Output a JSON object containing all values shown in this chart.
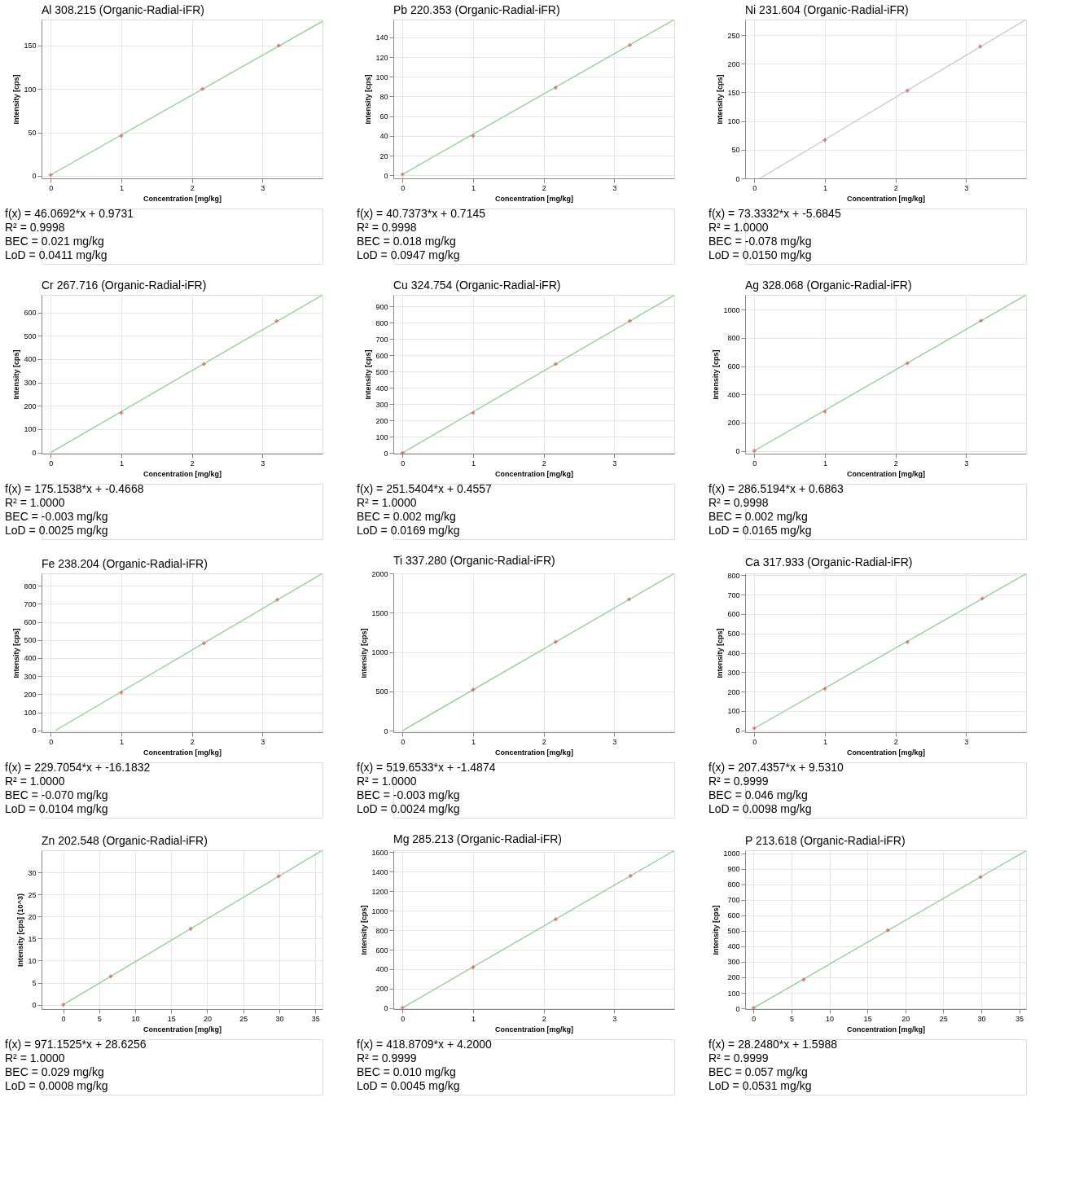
{
  "chart_data": [
    {
      "type": "scatter",
      "title": "Al 308.215 (Organic-Radial-iFR)",
      "xlabel": "Concentration [mg/kg]",
      "ylabel": "Intensity [cps]",
      "xlim": [
        -0.13,
        3.85
      ],
      "xticks": [
        0,
        1,
        2,
        3
      ],
      "ylim": [
        -3,
        180
      ],
      "yticks": [
        0,
        50,
        100,
        150
      ],
      "grid": true,
      "series": [
        {
          "type": "line",
          "color": "#8fd08f",
          "x": [
            0,
            3.85
          ],
          "values": [
            1,
            178
          ]
        },
        {
          "color": "#e05050",
          "marker": "cross",
          "x": [
            0,
            1,
            2.15,
            3.23
          ],
          "values": [
            1,
            46,
            100,
            150
          ]
        }
      ],
      "annotations": [
        "f(x) = 46.0692*x + 0.9731",
        "R² = 0.9998",
        "BEC = 0.021 mg/kg",
        "LoD = 0.0411 mg/kg"
      ]
    },
    {
      "type": "scatter",
      "title": "Pb 220.353 (Organic-Radial-iFR)",
      "xlabel": "Concentration [mg/kg]",
      "ylabel": "Intensity [cps]",
      "xlim": [
        -0.13,
        3.85
      ],
      "xticks": [
        0,
        1,
        2,
        3
      ],
      "ylim": [
        -3,
        158
      ],
      "yticks": [
        0,
        20,
        40,
        60,
        80,
        100,
        120,
        140
      ],
      "grid": true,
      "series": [
        {
          "type": "line",
          "color": "#8fd08f",
          "x": [
            0,
            3.85
          ],
          "values": [
            1,
            158
          ]
        },
        {
          "color": "#e05050",
          "marker": "cross",
          "x": [
            0,
            1,
            2.17,
            3.22
          ],
          "values": [
            1,
            40,
            89,
            132
          ]
        }
      ],
      "annotations": [
        "f(x) = 40.7373*x + 0.7145",
        "R² = 0.9998",
        "BEC = 0.018 mg/kg",
        "LoD = 0.0947 mg/kg"
      ]
    },
    {
      "type": "scatter",
      "title": "Ni 231.604 (Organic-Radial-iFR)",
      "xlabel": "Concentration [mg/kg]",
      "ylabel": "Intensity [cps]",
      "xlim": [
        -0.13,
        3.85
      ],
      "xticks": [
        0,
        1,
        2,
        3
      ],
      "ylim": [
        0,
        277
      ],
      "yticks": [
        0,
        50,
        100,
        150,
        200,
        250
      ],
      "grid": true,
      "series": [
        {
          "type": "line",
          "color": "#c8c8c8",
          "x": [
            0.08,
            3.85
          ],
          "values": [
            0,
            277
          ]
        },
        {
          "color": "#e05050",
          "marker": "cross",
          "x": [
            1,
            2.17,
            3.2
          ],
          "values": [
            67,
            153,
            230
          ]
        }
      ],
      "annotations": [
        "f(x) = 73.3332*x + -5.6845",
        "R² = 1.0000",
        "BEC = -0.078 mg/kg",
        "LoD = 0.0150 mg/kg"
      ]
    },
    {
      "type": "scatter",
      "title": "Cr 267.716 (Organic-Radial-iFR)",
      "xlabel": "Concentration [mg/kg]",
      "ylabel": "Intensity [cps]",
      "xlim": [
        -0.13,
        3.85
      ],
      "xticks": [
        0,
        1,
        2,
        3
      ],
      "ylim": [
        -5,
        675
      ],
      "yticks": [
        0,
        100,
        200,
        300,
        400,
        500,
        600
      ],
      "grid": true,
      "series": [
        {
          "type": "line",
          "color": "#8fd08f",
          "x": [
            0,
            3.85
          ],
          "values": [
            0,
            674
          ]
        },
        {
          "color": "#e05050",
          "marker": "cross",
          "x": [
            1,
            2.17,
            3.2
          ],
          "values": [
            170,
            378,
            563
          ]
        }
      ],
      "annotations": [
        "f(x) = 175.1538*x + -0.4668",
        "R² = 1.0000",
        "BEC = -0.003 mg/kg",
        "LoD = 0.0025 mg/kg"
      ]
    },
    {
      "type": "scatter",
      "title": "Cu 324.754 (Organic-Radial-iFR)",
      "xlabel": "Concentration [mg/kg]",
      "ylabel": "Intensity [cps]",
      "xlim": [
        -0.13,
        3.85
      ],
      "xticks": [
        0,
        1,
        2,
        3
      ],
      "ylim": [
        -5,
        970
      ],
      "yticks": [
        0,
        100,
        200,
        300,
        400,
        500,
        600,
        700,
        800,
        900
      ],
      "grid": true,
      "series": [
        {
          "type": "line",
          "color": "#8fd08f",
          "x": [
            0,
            3.85
          ],
          "values": [
            0,
            968
          ]
        },
        {
          "color": "#e05050",
          "marker": "cross",
          "x": [
            0,
            1,
            2.17,
            3.22
          ],
          "values": [
            0,
            245,
            545,
            810
          ]
        }
      ],
      "annotations": [
        "f(x) = 251.5404*x + 0.4557",
        "R² = 1.0000",
        "BEC = 0.002 mg/kg",
        "LoD = 0.0169 mg/kg"
      ]
    },
    {
      "type": "scatter",
      "title": "Ag 328.068 (Organic-Radial-iFR)",
      "xlabel": "Concentration [mg/kg]",
      "ylabel": "Intensity [cps]",
      "xlim": [
        -0.13,
        3.85
      ],
      "xticks": [
        0,
        1,
        2,
        3
      ],
      "ylim": [
        -20,
        1105
      ],
      "yticks": [
        0,
        200,
        400,
        600,
        800,
        1000
      ],
      "grid": true,
      "series": [
        {
          "type": "line",
          "color": "#8fd08f",
          "x": [
            0,
            3.85
          ],
          "values": [
            0,
            1104
          ]
        },
        {
          "color": "#e05050",
          "marker": "cross",
          "x": [
            0,
            1,
            2.17,
            3.21
          ],
          "values": [
            0,
            278,
            620,
            922
          ]
        }
      ],
      "annotations": [
        "f(x) = 286.5194*x + 0.6863",
        "R² = 0.9998",
        "BEC = 0.002 mg/kg",
        "LoD = 0.0165 mg/kg"
      ]
    },
    {
      "type": "scatter",
      "title": "Fe 238.204 (Organic-Radial-iFR)",
      "xlabel": "Concentration [mg/kg]",
      "ylabel": "Intensity [cps]",
      "xlim": [
        -0.13,
        3.85
      ],
      "xticks": [
        0,
        1,
        2,
        3
      ],
      "ylim": [
        -10,
        868
      ],
      "yticks": [
        0,
        100,
        200,
        300,
        400,
        500,
        600,
        700,
        800
      ],
      "grid": true,
      "series": [
        {
          "type": "line",
          "color": "#8fd08f",
          "x": [
            0.07,
            3.85
          ],
          "values": [
            0,
            868
          ]
        },
        {
          "color": "#e05050",
          "marker": "cross",
          "x": [
            1,
            2.17,
            3.21
          ],
          "values": [
            209,
            481,
            722
          ]
        }
      ],
      "annotations": [
        "f(x) = 229.7054*x + -16.1832",
        "R² = 1.0000",
        "BEC = -0.070 mg/kg",
        "LoD = 0.0104 mg/kg"
      ]
    },
    {
      "type": "scatter",
      "title": "Ti 337.280 (Organic-Radial-iFR)",
      "xlabel": "Concentration [mg/kg]",
      "ylabel": "Intensity [cps]",
      "xlim": [
        -0.13,
        3.85
      ],
      "xticks": [
        0,
        1,
        2,
        3
      ],
      "ylim": [
        -20,
        2000
      ],
      "yticks": [
        0,
        500,
        1000,
        1500,
        2000
      ],
      "grid": true,
      "series": [
        {
          "type": "line",
          "color": "#8fd08f",
          "x": [
            0,
            3.85
          ],
          "values": [
            0,
            2000
          ]
        },
        {
          "color": "#e05050",
          "marker": "cross",
          "x": [
            1,
            2.17,
            3.21
          ],
          "values": [
            520,
            1130,
            1670
          ]
        }
      ],
      "annotations": [
        "f(x) = 519.6533*x + -1.4874",
        "R² = 1.0000",
        "BEC = -0.003 mg/kg",
        "LoD = 0.0024 mg/kg"
      ]
    },
    {
      "type": "scatter",
      "title": "Ca 317.933 (Organic-Radial-iFR)",
      "xlabel": "Concentration [mg/kg]",
      "ylabel": "Intensity [cps]",
      "xlim": [
        -0.13,
        3.85
      ],
      "xticks": [
        0,
        1,
        2,
        3
      ],
      "ylim": [
        -10,
        810
      ],
      "yticks": [
        0,
        100,
        200,
        300,
        400,
        500,
        600,
        700,
        800
      ],
      "grid": true,
      "series": [
        {
          "type": "line",
          "color": "#8fd08f",
          "x": [
            0,
            3.85
          ],
          "values": [
            10,
            808
          ]
        },
        {
          "color": "#e05050",
          "marker": "cross",
          "x": [
            0,
            1,
            2.17,
            3.23
          ],
          "values": [
            10,
            214,
            455,
            680
          ]
        }
      ],
      "annotations": [
        "f(x) = 207.4357*x + 9.5310",
        "R² = 0.9999",
        "BEC = 0.046 mg/kg",
        "LoD = 0.0098 mg/kg"
      ]
    },
    {
      "type": "scatter",
      "title": "Zn 202.548 (Organic-Radial-iFR)",
      "xlabel": "Concentration [mg/kg]",
      "ylabel": "Intensity [cps] (10^3)",
      "xlim": [
        -3,
        36
      ],
      "xticks": [
        0,
        5,
        10,
        15,
        20,
        25,
        30,
        35
      ],
      "ylim": [
        -1,
        35
      ],
      "yticks": [
        0,
        5,
        10,
        15,
        20,
        25,
        30
      ],
      "grid": true,
      "series": [
        {
          "type": "line",
          "color": "#8fd08f",
          "x": [
            0,
            36
          ],
          "values": [
            0,
            35
          ]
        },
        {
          "color": "#e05050",
          "marker": "cross",
          "x": [
            0,
            6.6,
            17.7,
            29.9
          ],
          "values": [
            0,
            6.4,
            17.2,
            29.1
          ]
        }
      ],
      "annotations": [
        "f(x) = 971.1525*x + 28.6256",
        "R² = 1.0000",
        "BEC = 0.029 mg/kg",
        "LoD = 0.0008 mg/kg"
      ]
    },
    {
      "type": "scatter",
      "title": "Mg 285.213 (Organic-Radial-iFR)",
      "xlabel": "Concentration [mg/kg]",
      "ylabel": "Intensity [cps]",
      "xlim": [
        -0.13,
        3.85
      ],
      "xticks": [
        0,
        1,
        2,
        3
      ],
      "ylim": [
        -10,
        1620
      ],
      "yticks": [
        0,
        200,
        400,
        600,
        800,
        1000,
        1200,
        1400,
        1600
      ],
      "grid": true,
      "series": [
        {
          "type": "line",
          "color": "#8fd08f",
          "x": [
            0,
            3.85
          ],
          "values": [
            4,
            1617
          ]
        },
        {
          "color": "#e05050",
          "marker": "cross",
          "x": [
            0,
            1,
            2.17,
            3.23
          ],
          "values": [
            4,
            420,
            912,
            1357
          ]
        }
      ],
      "annotations": [
        "f(x) = 418.8709*x + 4.2000",
        "R² = 0.9999",
        "BEC = 0.010 mg/kg",
        "LoD = 0.0045 mg/kg"
      ]
    },
    {
      "type": "scatter",
      "title": "P 213.618 (Organic-Radial-iFR)",
      "xlabel": "Concentration [mg/kg]",
      "ylabel": "Intensity [cps]",
      "xlim": [
        -1.1,
        35.9
      ],
      "xticks": [
        0,
        5,
        10,
        15,
        20,
        25,
        30,
        35
      ],
      "ylim": [
        -5,
        1019
      ],
      "yticks": [
        0,
        100,
        200,
        300,
        400,
        500,
        600,
        700,
        800,
        900,
        1000
      ],
      "grid": true,
      "series": [
        {
          "type": "line",
          "color": "#8fd08f",
          "x": [
            0,
            35.9
          ],
          "values": [
            2,
            1016
          ]
        },
        {
          "color": "#e05050",
          "marker": "cross",
          "x": [
            0,
            6.6,
            17.7,
            29.9
          ],
          "values": [
            3,
            185,
            503,
            847
          ]
        }
      ],
      "annotations": [
        "f(x) = 28.2480*x + 1.5988",
        "R² = 0.9999",
        "BEC = 0.057 mg/kg",
        "LoD = 0.0531 mg/kg"
      ]
    }
  ]
}
